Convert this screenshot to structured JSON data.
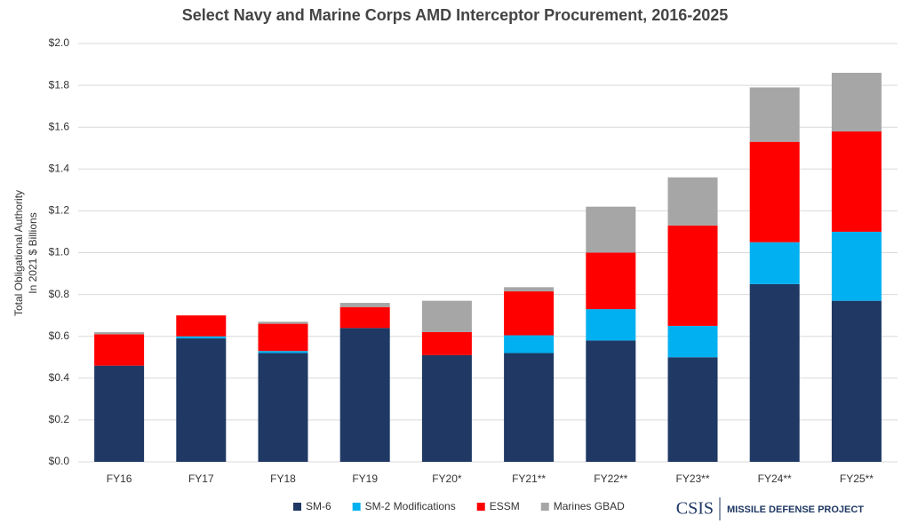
{
  "chart_data": {
    "type": "stacked_bar",
    "title": "Select Navy and Marine Corps AMD Interceptor Procurement, 2016-2025",
    "ylabel": [
      "Total Obligational Authority",
      "In 2021 $ Billions"
    ],
    "categories": [
      "FY16",
      "FY17",
      "FY18",
      "FY19",
      "FY20*",
      "FY21**",
      "FY22**",
      "FY23**",
      "FY24**",
      "FY25**"
    ],
    "series": [
      {
        "name": "SM-6",
        "color": "#1f3864",
        "values": [
          0.46,
          0.59,
          0.52,
          0.64,
          0.51,
          0.52,
          0.58,
          0.5,
          0.85,
          0.77
        ]
      },
      {
        "name": "SM-2 Modifications",
        "color": "#00b0f0",
        "values": [
          0.0,
          0.01,
          0.01,
          0.0,
          0.0,
          0.085,
          0.15,
          0.15,
          0.2,
          0.33
        ]
      },
      {
        "name": "ESSM",
        "color": "#ff0000",
        "values": [
          0.15,
          0.1,
          0.13,
          0.1,
          0.11,
          0.21,
          0.27,
          0.48,
          0.48,
          0.48
        ]
      },
      {
        "name": "Marines GBAD",
        "color": "#a6a6a6",
        "values": [
          0.01,
          0.0,
          0.01,
          0.02,
          0.15,
          0.02,
          0.22,
          0.23,
          0.26,
          0.28
        ]
      }
    ],
    "ylim": [
      0,
      2.0
    ],
    "yticks": [
      {
        "value": 0,
        "label": "$0.0"
      },
      {
        "value": 0.2,
        "label": "$0.2"
      },
      {
        "value": 0.4,
        "label": "$0.4"
      },
      {
        "value": 0.6,
        "label": "$0.6"
      },
      {
        "value": 0.8,
        "label": "$0.8"
      },
      {
        "value": 1.0,
        "label": "$1.0"
      },
      {
        "value": 1.2,
        "label": "$1.2"
      },
      {
        "value": 1.4,
        "label": "$1.4"
      },
      {
        "value": 1.6,
        "label": "$1.6"
      },
      {
        "value": 1.8,
        "label": "$1.8"
      },
      {
        "value": 2.0,
        "label": "$2.0"
      }
    ],
    "grid": true,
    "legend": "bottom"
  },
  "branding": {
    "org": "CSIS",
    "project": "MISSILE DEFENSE PROJECT"
  }
}
